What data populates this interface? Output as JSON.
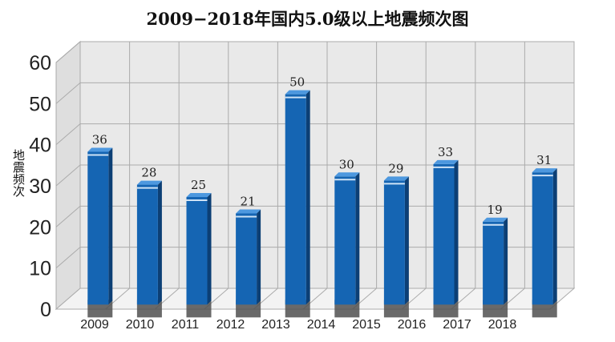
{
  "chart_data": {
    "type": "bar",
    "title": "2009−2018年国内5.0级以上地震频次图",
    "xlabel": "",
    "ylabel": "地震频次",
    "categories": [
      "2009",
      "2010",
      "2011",
      "2012",
      "2013",
      "2014",
      "2015",
      "2016",
      "2017",
      "2018"
    ],
    "values": [
      36,
      28,
      25,
      21,
      50,
      30,
      29,
      33,
      19,
      31
    ],
    "data_labels": [
      "36",
      "28",
      "25",
      "21",
      "50",
      "30",
      "29",
      "33",
      "19",
      "31"
    ],
    "yticks": [
      "0",
      "10",
      "20",
      "30",
      "40",
      "50",
      "60"
    ],
    "ylim": [
      0,
      60
    ],
    "grid": true,
    "style": "3d-bar",
    "colors": {
      "bar_front": "#1565b3",
      "bar_side": "#0c3f75",
      "bar_top": "#4d98df",
      "bar_highlight": "#cfe3f6",
      "bar_base": "#505050",
      "wall": "#e9e9e9",
      "floor": "#f3f3f3",
      "grid": "#ababab"
    }
  }
}
